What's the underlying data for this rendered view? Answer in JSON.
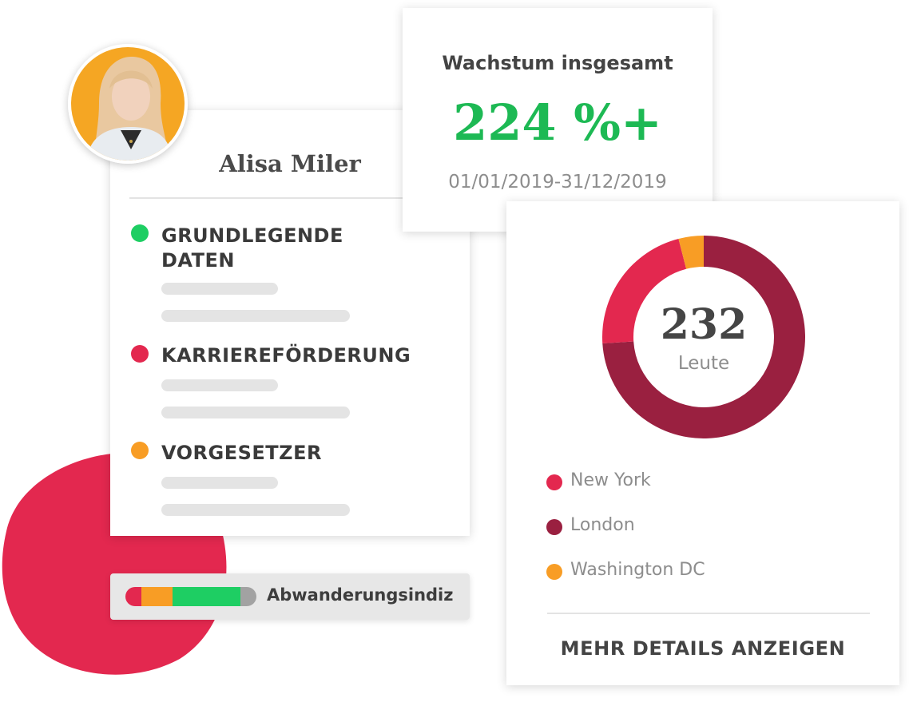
{
  "profile": {
    "name": "Alisa Miler",
    "sections": [
      {
        "title": "GRUNDLEGENDE DATEN",
        "color": "#1ece63"
      },
      {
        "title": "KARRIEREFÖRDERUNG",
        "color": "#e3284f"
      },
      {
        "title": "VORGESETZER",
        "color": "#f89d25"
      }
    ]
  },
  "churn": {
    "label": "Abwanderungsindiz",
    "segments": [
      {
        "color": "#e3284f",
        "fraction": 0.12
      },
      {
        "color": "#f89d25",
        "fraction": 0.24
      },
      {
        "color": "#1ece63",
        "fraction": 0.52
      },
      {
        "color": "#a2a2a2",
        "fraction": 0.12
      }
    ]
  },
  "growth": {
    "title": "Wachstum insgesamt",
    "value": "224 %+",
    "range": "01/01/2019-31/12/2019"
  },
  "chart_data": {
    "type": "pie",
    "center_value": "232",
    "center_label": "Leute",
    "categories": [
      "New York",
      "London",
      "Washington DC"
    ],
    "values": [
      22,
      74,
      4
    ],
    "colors": [
      "#e3284f",
      "#9a2040",
      "#f89d25"
    ]
  },
  "details_link": "MEHR DETAILS ANZEIGEN",
  "colors": {
    "blob": "#e3284f",
    "avatar_bg": "#f5a623",
    "green": "#1db954"
  }
}
